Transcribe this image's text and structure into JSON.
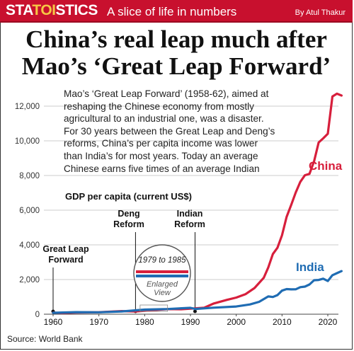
{
  "header": {
    "brand_a": "STA",
    "brand_b": "TOI",
    "brand_c": "STICS",
    "tagline": "A slice of life in numbers",
    "byline": "By Atul Thakur"
  },
  "headline": {
    "line1": "China’s real leap much after",
    "line2": "Mao’s ‘Great Leap Forward’"
  },
  "blurb_lines": [
    "Mao’s ‘Great Leap Forward’ (1958-62), aimed at",
    "reshaping the Chinese economy from mostly",
    "agricultural to an industrial one, was a disaster.",
    "For 30 years between the Great Leap and Deng’s",
    "reforms, China’s per capita income was lower",
    "than India’s for most years. Today an average",
    "Chinese earns five times of an average Indian"
  ],
  "source": "Source: World Bank",
  "colors": {
    "china": "#d71f3c",
    "india": "#1f6cb3",
    "banner": "#c8102e",
    "accent": "#f6c744"
  },
  "chart_data": {
    "type": "line",
    "title": "",
    "ylabel": "GDP per capita (current US$)",
    "xlabel": "",
    "xlim": [
      1959,
      2024
    ],
    "ylim": [
      0,
      13000
    ],
    "xticks": [
      1960,
      1970,
      1980,
      1990,
      2000,
      2010,
      2020
    ],
    "yticks": [
      0,
      2000,
      4000,
      6000,
      8000,
      10000,
      12000
    ],
    "ytick_labels": [
      "0",
      "2,000",
      "4,000",
      "6,000",
      "8,000",
      "10,000",
      "12,000"
    ],
    "grid": true,
    "series": [
      {
        "name": "China",
        "points": [
          [
            1960,
            90
          ],
          [
            1962,
            70
          ],
          [
            1965,
            98
          ],
          [
            1970,
            113
          ],
          [
            1975,
            178
          ],
          [
            1978,
            156
          ],
          [
            1980,
            195
          ],
          [
            1985,
            294
          ],
          [
            1988,
            284
          ],
          [
            1990,
            318
          ],
          [
            1993,
            377
          ],
          [
            1995,
            610
          ],
          [
            1998,
            829
          ],
          [
            2000,
            959
          ],
          [
            2002,
            1149
          ],
          [
            2004,
            1509
          ],
          [
            2006,
            2099
          ],
          [
            2007,
            2694
          ],
          [
            2008,
            3468
          ],
          [
            2009,
            3832
          ],
          [
            2010,
            4550
          ],
          [
            2011,
            5614
          ],
          [
            2012,
            6301
          ],
          [
            2013,
            7020
          ],
          [
            2014,
            7636
          ],
          [
            2015,
            8016
          ],
          [
            2016,
            8094
          ],
          [
            2017,
            8817
          ],
          [
            2018,
            9905
          ],
          [
            2019,
            10144
          ],
          [
            2020,
            10409
          ],
          [
            2021,
            12556
          ],
          [
            2022,
            12720
          ],
          [
            2023,
            12614
          ]
        ]
      },
      {
        "name": "India",
        "points": [
          [
            1960,
            83
          ],
          [
            1965,
            119
          ],
          [
            1970,
            112
          ],
          [
            1975,
            158
          ],
          [
            1980,
            267
          ],
          [
            1985,
            297
          ],
          [
            1990,
            368
          ],
          [
            1991,
            303
          ],
          [
            1995,
            374
          ],
          [
            2000,
            443
          ],
          [
            2003,
            565
          ],
          [
            2005,
            714
          ],
          [
            2007,
            1023
          ],
          [
            2008,
            993
          ],
          [
            2009,
            1102
          ],
          [
            2010,
            1358
          ],
          [
            2011,
            1450
          ],
          [
            2012,
            1434
          ],
          [
            2013,
            1438
          ],
          [
            2014,
            1560
          ],
          [
            2015,
            1590
          ],
          [
            2016,
            1715
          ],
          [
            2017,
            1958
          ],
          [
            2018,
            1974
          ],
          [
            2019,
            2050
          ],
          [
            2020,
            1913
          ],
          [
            2021,
            2250
          ],
          [
            2022,
            2366
          ],
          [
            2023,
            2485
          ]
        ]
      }
    ],
    "annotations": [
      {
        "label_lines": [
          "Great Leap",
          "Forward"
        ],
        "year": 1960
      },
      {
        "label_lines": [
          "Deng",
          "Reform"
        ],
        "year": 1978
      },
      {
        "label_lines": [
          "Indian",
          "Reform"
        ],
        "year": 1991
      }
    ],
    "inset": {
      "title": "1979 to 1985",
      "caption_lines": [
        "Enlarged",
        "View"
      ]
    },
    "series_labels": {
      "china": "China",
      "india": "India"
    }
  }
}
